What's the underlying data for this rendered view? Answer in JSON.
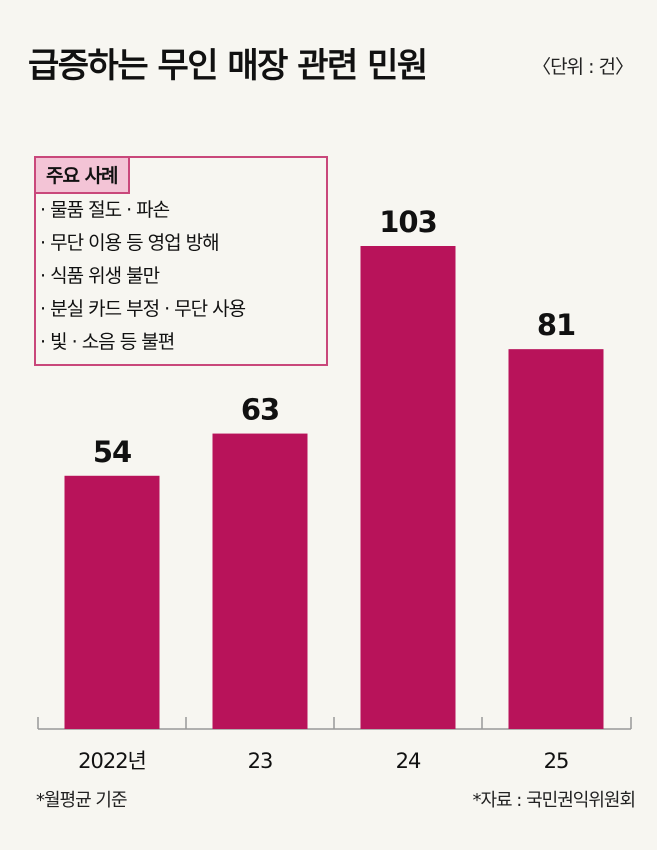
{
  "header": {
    "title": "급증하는 무인 매장 관련 민원",
    "unit": "〈단위 : 건〉"
  },
  "cases_box": {
    "title": "주요 사례",
    "items": [
      "물품 절도 · 파손",
      "무단 이용 등 영업 방해",
      "식품 위생 불만",
      "분실 카드 부정 · 무단 사용",
      "빛 · 소음 등 불편"
    ]
  },
  "footnotes": {
    "left": "*월평균 기준",
    "right": "*자료 : 국민권익위원회"
  },
  "colors": {
    "bar": "#b8135a",
    "box_border": "#c9487b",
    "box_header_bg": "#f3c4d6",
    "background": "#f7f6f1"
  },
  "chart_data": {
    "type": "bar",
    "categories": [
      "2022년",
      "23",
      "24",
      "25"
    ],
    "values": [
      54,
      63,
      103,
      81
    ],
    "ylim": [
      0,
      103
    ],
    "grid": false,
    "legend": "none"
  }
}
